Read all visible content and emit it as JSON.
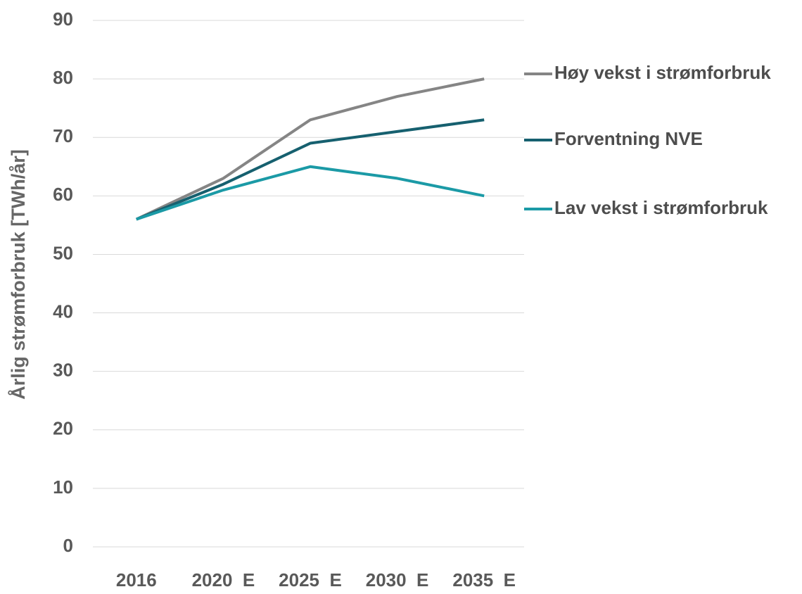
{
  "chart_data": {
    "type": "line",
    "y_label": "Årlig strømforbruk [TWh/år]",
    "categories": [
      "2016",
      "2020  E",
      "2025  E",
      "2030  E",
      "2035  E"
    ],
    "series": [
      {
        "name": "Høy vekst i strømforbruk",
        "color": "#858585",
        "values": [
          56,
          63,
          73,
          77,
          80
        ]
      },
      {
        "name": "Forventning NVE",
        "color": "#16606f",
        "values": [
          56,
          62,
          69,
          71,
          73
        ]
      },
      {
        "name": "Lav vekst i strømforbruk",
        "color": "#1b9aa6",
        "values": [
          56,
          61,
          65,
          63,
          60
        ]
      }
    ],
    "ylim": [
      0,
      90
    ],
    "yticks": [
      0,
      10,
      20,
      30,
      40,
      50,
      60,
      70,
      80,
      90
    ],
    "grid": true,
    "legend": "right"
  }
}
